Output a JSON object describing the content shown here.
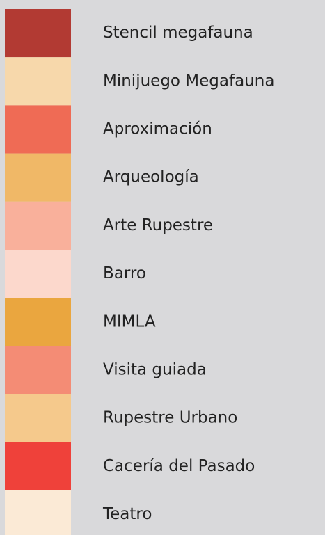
{
  "legend": {
    "items": [
      {
        "label": "Stencil megafauna",
        "color": "#b23a33"
      },
      {
        "label": "Minijuego Megafauna",
        "color": "#f7d8ab"
      },
      {
        "label": "Aproximación",
        "color": "#ef6b55"
      },
      {
        "label": "Arqueología",
        "color": "#f0b867"
      },
      {
        "label": "Arte Rupestre",
        "color": "#f9b09b"
      },
      {
        "label": "Barro",
        "color": "#fcd8cc"
      },
      {
        "label": "MIMLA",
        "color": "#eaa63f"
      },
      {
        "label": "Visita guiada",
        "color": "#f48c75"
      },
      {
        "label": "Rupestre Urbano",
        "color": "#f5c98c"
      },
      {
        "label": "Cacería del Pasado",
        "color": "#ef413a"
      },
      {
        "label": "Teatro",
        "color": "#fbead6"
      }
    ]
  }
}
